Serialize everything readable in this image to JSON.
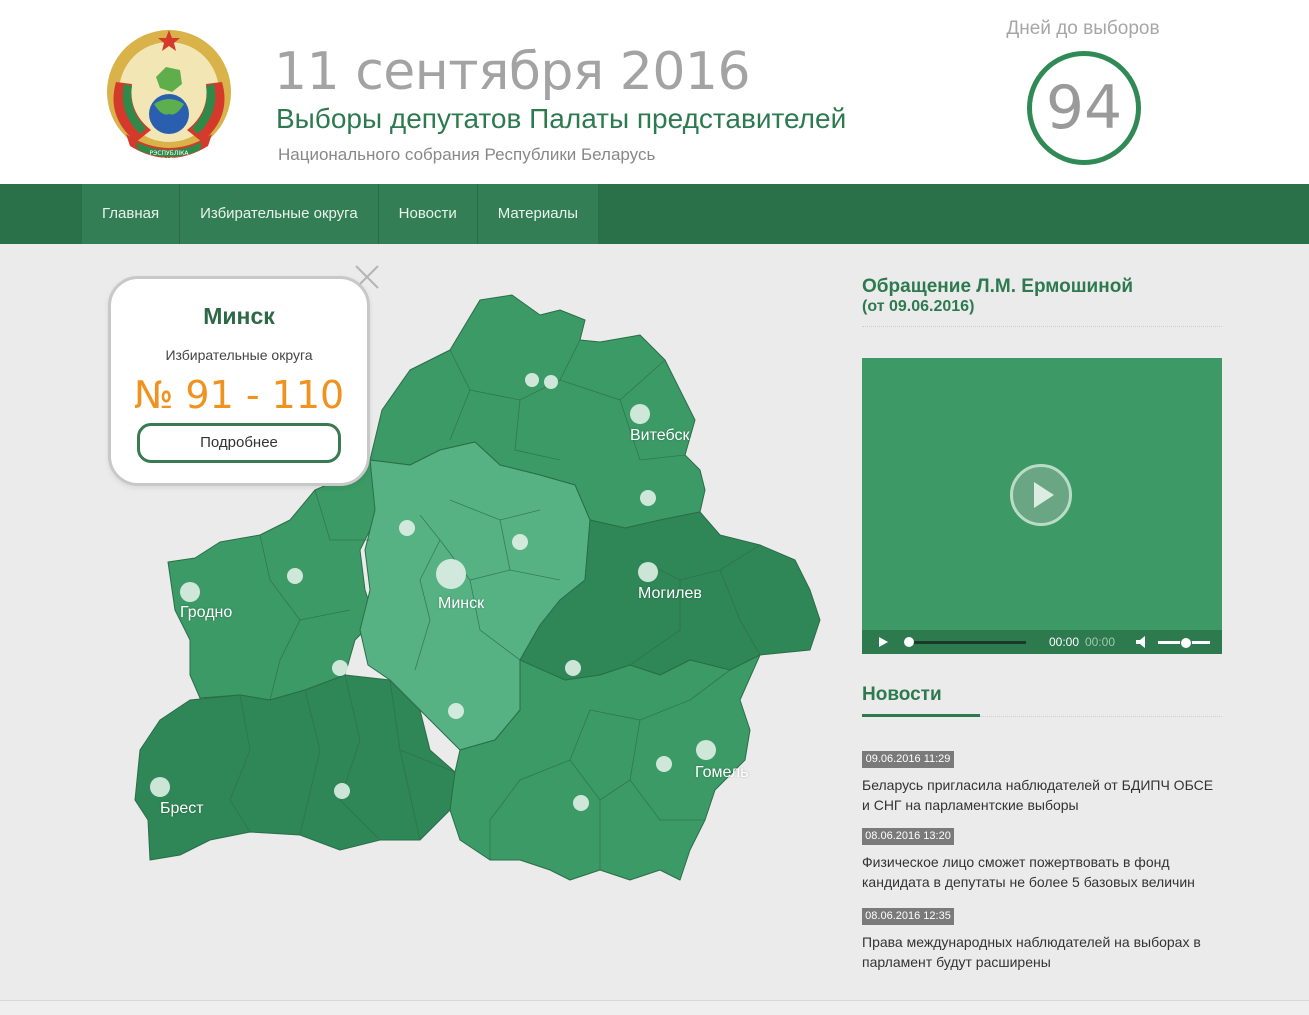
{
  "header": {
    "date": "11 сентября 2016",
    "title": "Выборы депутатов Палаты представителей",
    "subtitle": "Национального собрания Республики Беларусь",
    "emblem_text": "РЭСПУБЛІКА БЕЛАРУСЬ",
    "countdown_label": "Дней до выборов",
    "countdown_value": "94"
  },
  "nav": {
    "items": [
      "Главная",
      "Избирательные округа",
      "Новости",
      "Материалы"
    ]
  },
  "map": {
    "cities": [
      "Витебск",
      "Минск",
      "Могилев",
      "Гродно",
      "Гомель",
      "Брест"
    ],
    "colors": {
      "dark": "#2f8656",
      "mid": "#3c9a66",
      "light": "#56b283"
    }
  },
  "popup": {
    "city": "Минск",
    "label": "Избирательные округа",
    "range": "№ 91 - 110",
    "button": "Подробнее"
  },
  "appeal": {
    "title": "Обращение Л.М. Ермошиной",
    "date": "(от 09.06.2016)",
    "player": {
      "current_time": "00:00",
      "duration": "00:00",
      "progress": 0,
      "volume": 0.6
    }
  },
  "news": {
    "title": "Новости",
    "items": [
      {
        "date": "09.06.2016 11:29",
        "text": "Беларусь пригласила наблюдателей от БДИПЧ ОБСЕ и СНГ на парламентские выборы"
      },
      {
        "date": "08.06.2016 13:20",
        "text": "Физическое лицо сможет пожертвовать в фонд кандидата в депутаты не более 5 базовых величин"
      },
      {
        "date": "08.06.2016 12:35",
        "text": "Права международных наблюдателей на выборах в парламент будут расширены"
      }
    ]
  }
}
